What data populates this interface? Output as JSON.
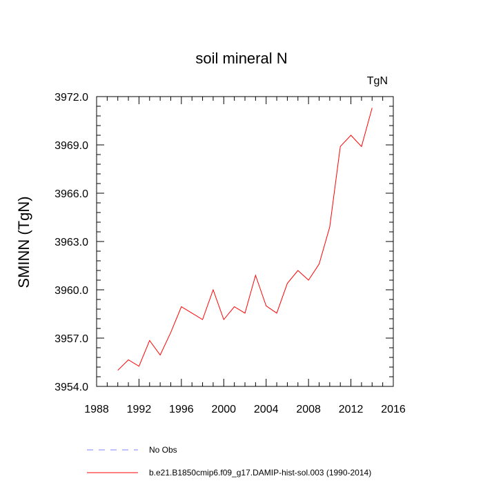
{
  "chart_data": {
    "type": "line",
    "title": "soil mineral N",
    "units_label": "TgN",
    "xlabel": "",
    "ylabel": "SMINN  (TgN)",
    "xlim": [
      1988,
      2016
    ],
    "ylim": [
      3954.0,
      3972.0
    ],
    "x_ticks": [
      1988,
      1992,
      1996,
      2000,
      2004,
      2008,
      2012,
      2016
    ],
    "x_tick_labels": [
      "1988",
      "1992",
      "1996",
      "2000",
      "2004",
      "2008",
      "2012",
      "2016"
    ],
    "y_ticks": [
      3954.0,
      3957.0,
      3960.0,
      3963.0,
      3966.0,
      3969.0,
      3972.0
    ],
    "y_tick_labels": [
      "3954.0",
      "3957.0",
      "3960.0",
      "3963.0",
      "3966.0",
      "3969.0",
      "3972.0"
    ],
    "grid": false,
    "legend_position": "bottom",
    "series": [
      {
        "name": "No Obs",
        "color": "#8080ff",
        "style": "dashed",
        "x": [],
        "y": []
      },
      {
        "name": "b.e21.B1850cmip6.f09_g17.DAMIP-hist-sol.003 (1990-2014)",
        "color": "#ff0000",
        "style": "solid",
        "x": [
          1990,
          1991,
          1992,
          1993,
          1994,
          1995,
          1996,
          1997,
          1998,
          1999,
          2000,
          2001,
          2002,
          2003,
          2004,
          2005,
          2006,
          2007,
          2008,
          2009,
          2010,
          2011,
          2012,
          2013,
          2014
        ],
        "y": [
          3955.0,
          3955.65,
          3955.25,
          3956.85,
          3955.95,
          3957.35,
          3958.95,
          3958.55,
          3958.15,
          3960.0,
          3958.15,
          3958.95,
          3958.55,
          3960.9,
          3959.0,
          3958.55,
          3960.4,
          3961.2,
          3960.6,
          3961.6,
          3963.9,
          3968.9,
          3969.6,
          3968.9,
          3971.3
        ]
      }
    ]
  }
}
